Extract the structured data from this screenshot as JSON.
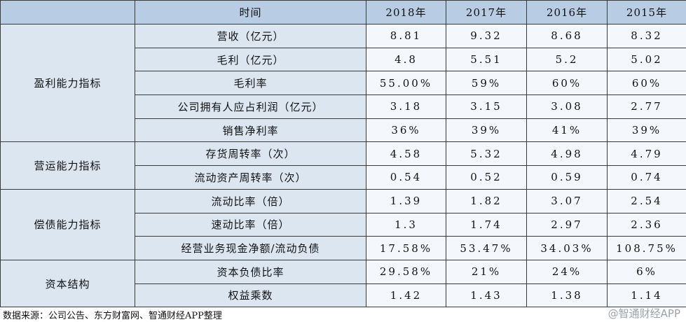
{
  "header": {
    "label": "时间",
    "years": [
      "2018年",
      "2017年",
      "2016年",
      "2015年"
    ]
  },
  "groups": [
    {
      "name": "盈利能力指标",
      "rows": [
        {
          "label": "营收（亿元）",
          "values": [
            "8.81",
            "9.32",
            "8.68",
            "8.32"
          ]
        },
        {
          "label": "毛利（亿元）",
          "values": [
            "4.8",
            "5.51",
            "5.2",
            "5.02"
          ]
        },
        {
          "label": "毛利率",
          "values": [
            "55.00%",
            "59%",
            "60%",
            "60%"
          ]
        },
        {
          "label": "公司拥有人应占利润（亿元）",
          "values": [
            "3.18",
            "3.15",
            "3.08",
            "2.77"
          ]
        },
        {
          "label": "销售净利率",
          "values": [
            "36%",
            "39%",
            "41%",
            "39%"
          ]
        }
      ]
    },
    {
      "name": "营运能力指标",
      "rows": [
        {
          "label": "存货周转率（次）",
          "values": [
            "4.58",
            "5.32",
            "4.98",
            "4.79"
          ]
        },
        {
          "label": "流动资产周转率（次）",
          "values": [
            "0.54",
            "0.52",
            "0.59",
            "0.74"
          ]
        }
      ]
    },
    {
      "name": "偿债能力指标",
      "rows": [
        {
          "label": "流动比率（倍）",
          "values": [
            "1.39",
            "1.82",
            "3.07",
            "2.54"
          ]
        },
        {
          "label": "速动比率（倍）",
          "values": [
            "1.3",
            "1.74",
            "2.97",
            "2.36"
          ]
        },
        {
          "label": "经营业务现金净额/流动负债",
          "values": [
            "17.58%",
            "53.47%",
            "34.03%",
            "108.75%"
          ]
        }
      ]
    },
    {
      "name": "资本结构",
      "rows": [
        {
          "label": "资本负债比率",
          "values": [
            "29.58%",
            "21%",
            "24%",
            "6%"
          ]
        },
        {
          "label": "权益乘数",
          "values": [
            "1.42",
            "1.43",
            "1.38",
            "1.14"
          ]
        }
      ]
    }
  ],
  "source": "数据来源：公司公告、东方财富网、智通财经APP整理",
  "watermark": "@智通财经APP"
}
